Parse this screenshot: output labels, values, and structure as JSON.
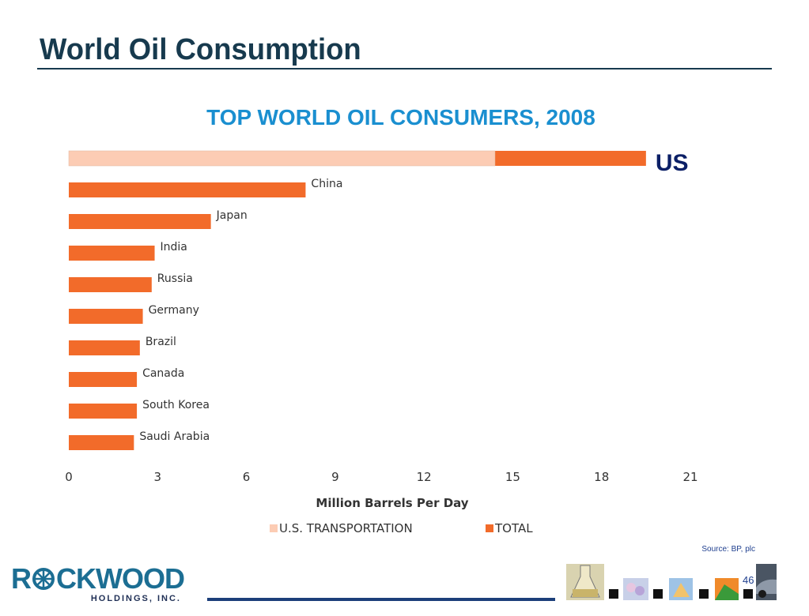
{
  "slide": {
    "title": "World Oil Consumption",
    "source": "Source: BP, plc",
    "page_number": "46"
  },
  "logo": {
    "main_left": "R",
    "main_right": "CKWOOD",
    "sub": "HOLDINGS, INC."
  },
  "colors": {
    "title": "#173a4e",
    "chart_title": "#1a8fd0",
    "total": "#f26b2a",
    "transportation": "#fcccb4",
    "axis_text": "#333333",
    "us_label": "#0b1f66"
  },
  "chart_data": {
    "type": "bar",
    "orientation": "horizontal",
    "title": "TOP WORLD OIL CONSUMERS, 2008",
    "xlabel": "Million Barrels Per Day",
    "ylabel": "",
    "xlim": [
      0,
      21
    ],
    "xticks": [
      "0",
      "3",
      "6",
      "9",
      "12",
      "15",
      "18",
      "21"
    ],
    "grid": false,
    "legend_position": "bottom",
    "categories": [
      "US",
      "China",
      "Japan",
      "India",
      "Russia",
      "Germany",
      "Brazil",
      "Canada",
      "South Korea",
      "Saudi Arabia"
    ],
    "series": [
      {
        "name": "U.S. TRANSPORTATION",
        "values": [
          14.4,
          null,
          null,
          null,
          null,
          null,
          null,
          null,
          null,
          null
        ]
      },
      {
        "name": "TOTAL",
        "values": [
          19.5,
          8.0,
          4.8,
          2.9,
          2.8,
          2.5,
          2.4,
          2.3,
          2.3,
          2.2
        ]
      }
    ]
  }
}
